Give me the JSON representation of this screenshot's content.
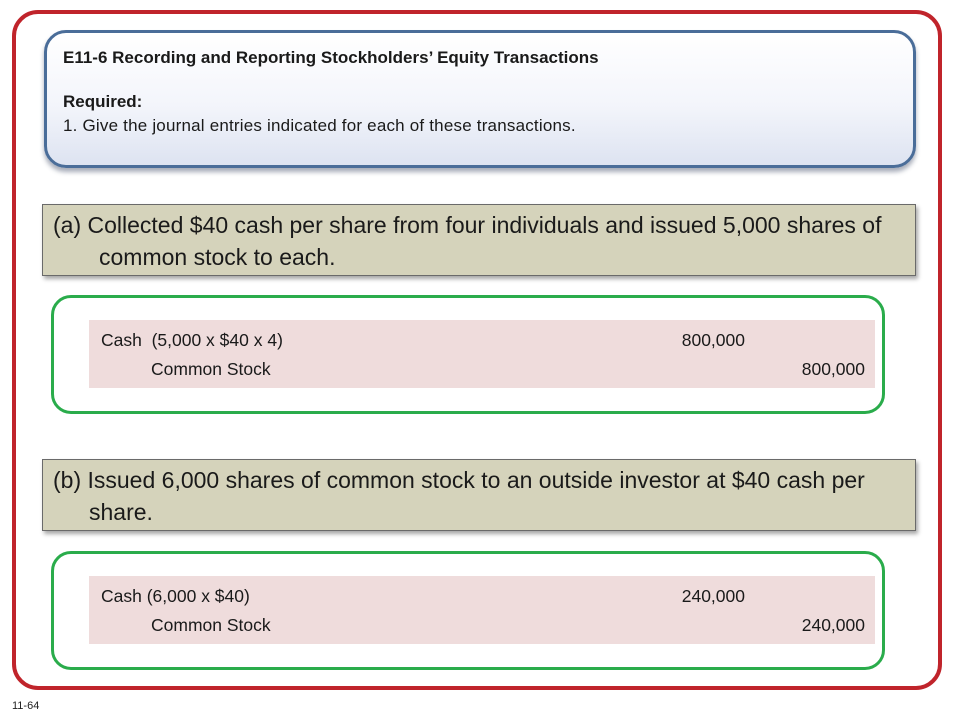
{
  "header": {
    "title": "E11-6 Recording and Reporting Stockholders’ Equity Transactions",
    "required_label": "Required:",
    "instruction": "1. Give the journal entries indicated for each of these transactions."
  },
  "transactions": [
    {
      "question": "(a) Collected $40 cash per share from four individuals and issued 5,000 shares of common stock to each.",
      "entries": [
        {
          "account": "Cash  (5,000 x $40 x 4)",
          "debit": "800,000",
          "credit": ""
        },
        {
          "account": "Common Stock",
          "debit": "",
          "credit": "800,000"
        }
      ]
    },
    {
      "question": "(b) Issued 6,000 shares of common stock to an outside investor at $40 cash per share.",
      "entries": [
        {
          "account": "Cash (6,000 x $40)",
          "debit": "240,000",
          "credit": ""
        },
        {
          "account": "Common Stock",
          "debit": "",
          "credit": "240,000"
        }
      ]
    }
  ],
  "slide_number": "11-64",
  "colors": {
    "frame": "#c0242b",
    "header_border": "#4a6d99",
    "question_bg": "#d5d3bb",
    "answer_border": "#2aac4b",
    "journal_bg": "#efdcdc"
  }
}
